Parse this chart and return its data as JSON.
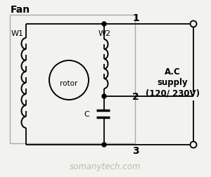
{
  "title": "Fan",
  "ac_label": "A.C\nsupply\n(120/ 230V)",
  "watermark": "somanytech.com",
  "bg_color": "#f2f2ee",
  "node1_label": "1",
  "node2_label": "2",
  "node3_label": "3",
  "w1_label": "W1",
  "w2_label": "W2",
  "c_label": "C",
  "rotor_label": "rotor",
  "figsize": [
    3.0,
    2.53
  ],
  "dpi": 100
}
